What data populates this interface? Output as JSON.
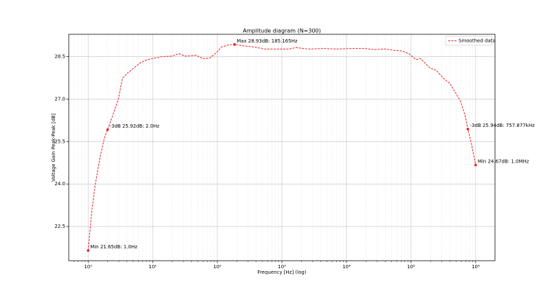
{
  "chart_data": {
    "type": "line",
    "title": "Amplitude diagram (N=300)",
    "x_label": "Frequency [Hz] (log)",
    "y_label": "Voltage Gain Peak-Peak [dB]",
    "x_scale": "log",
    "grid": true,
    "minor_grid": true,
    "legend_position": "upper-right",
    "xlim": [
      0.501,
      1995262
    ],
    "ylim": [
      21.29,
      29.29
    ],
    "xticks": [
      {
        "value": 1,
        "label": "10⁰"
      },
      {
        "value": 10,
        "label": "10¹"
      },
      {
        "value": 100,
        "label": "10²"
      },
      {
        "value": 1000,
        "label": "10³"
      },
      {
        "value": 10000,
        "label": "10⁴"
      },
      {
        "value": 100000,
        "label": "10⁵"
      },
      {
        "value": 1000000,
        "label": "10⁶"
      }
    ],
    "yticks": [
      22.5,
      {
        "value": 24,
        "label": "24.0"
      },
      25.5,
      {
        "value": 27,
        "label": "27.0"
      },
      28.5
    ],
    "x": [
      1,
      1.13,
      1.28,
      1.52,
      1.8,
      2.0,
      2.48,
      2.94,
      3.4,
      4.04,
      5.16,
      6.59,
      8.43,
      10.8,
      13.7,
      19.9,
      25.4,
      32.4,
      46.8,
      59.8,
      76.4,
      97.6,
      116,
      152,
      185.165,
      260,
      375,
      542,
      783,
      1277,
      1633,
      2666,
      4350,
      7100,
      11590,
      18920,
      27300,
      39400,
      56900,
      72800,
      92900,
      118600,
      140900,
      193700,
      247600,
      316000,
      403600,
      480000,
      583600,
      691800,
      757877,
      863000,
      1000000
    ],
    "series": [
      {
        "name": "Smoothed data",
        "color": "#e8181c",
        "values": [
          21.65,
          22.96,
          23.94,
          24.92,
          25.66,
          25.92,
          26.51,
          27.0,
          27.74,
          27.91,
          28.11,
          28.3,
          28.4,
          28.45,
          28.5,
          28.52,
          28.6,
          28.52,
          28.55,
          28.43,
          28.45,
          28.65,
          28.84,
          28.92,
          28.93,
          28.88,
          28.84,
          28.77,
          28.77,
          28.77,
          28.82,
          28.77,
          28.79,
          28.77,
          28.79,
          28.79,
          28.75,
          28.77,
          28.72,
          28.7,
          28.6,
          28.4,
          28.43,
          28.11,
          28.01,
          27.74,
          27.54,
          27.25,
          26.93,
          26.39,
          25.94,
          25.41,
          24.67
        ]
      }
    ],
    "annotations": [
      {
        "text": "Max 28.93dB: 185.165Hz",
        "x": 185.165,
        "y": 28.93
      },
      {
        "text": "Min 21.65dB: 1.0Hz",
        "x": 1,
        "y": 21.65
      },
      {
        "text": "-3dB 25.92dB: 2.0Hz",
        "x": 2.0,
        "y": 25.92
      },
      {
        "text": "-3dB 25.94dB: 757.877kHz",
        "x": 757877,
        "y": 25.94
      },
      {
        "text": "Min 24.67dB: 1.0MHz",
        "x": 1000000,
        "y": 24.67
      }
    ]
  }
}
